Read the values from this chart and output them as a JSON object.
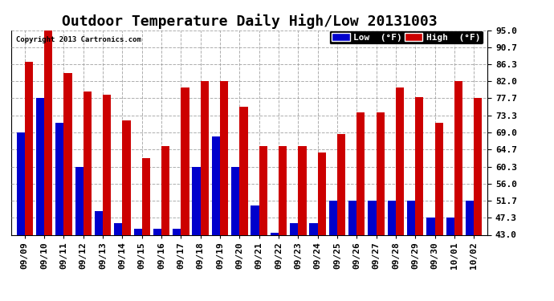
{
  "title": "Outdoor Temperature Daily High/Low 20131003",
  "copyright": "Copyright 2013 Cartronics.com",
  "legend_low": "Low  (°F)",
  "legend_high": "High  (°F)",
  "categories": [
    "09/09",
    "09/10",
    "09/11",
    "09/12",
    "09/13",
    "09/14",
    "09/15",
    "09/16",
    "09/17",
    "09/18",
    "09/19",
    "09/20",
    "09/21",
    "09/22",
    "09/23",
    "09/24",
    "09/25",
    "09/26",
    "09/27",
    "09/28",
    "09/29",
    "09/30",
    "10/01",
    "10/02"
  ],
  "low_values": [
    69.0,
    77.7,
    71.5,
    60.3,
    49.0,
    46.0,
    44.5,
    44.5,
    44.5,
    60.3,
    68.0,
    60.3,
    50.5,
    43.5,
    46.0,
    46.0,
    51.7,
    51.7,
    51.7,
    51.7,
    51.7,
    47.3,
    47.3,
    51.7
  ],
  "high_values": [
    87.0,
    95.0,
    84.0,
    79.5,
    78.5,
    72.0,
    62.5,
    65.5,
    80.5,
    82.0,
    82.0,
    75.5,
    65.5,
    65.5,
    65.5,
    64.0,
    68.5,
    74.0,
    74.0,
    80.5,
    78.0,
    71.5,
    82.0,
    77.7
  ],
  "low_color": "#0000cc",
  "high_color": "#cc0000",
  "background_color": "#ffffff",
  "plot_bg_color": "#ffffff",
  "grid_color": "#999999",
  "ymin": 43.0,
  "ymax": 95.0,
  "yticks": [
    43.0,
    47.3,
    51.7,
    56.0,
    60.3,
    64.7,
    69.0,
    73.3,
    77.7,
    82.0,
    86.3,
    90.7,
    95.0
  ],
  "title_fontsize": 13,
  "tick_fontsize": 8,
  "legend_fontsize": 8,
  "bar_width": 0.42
}
